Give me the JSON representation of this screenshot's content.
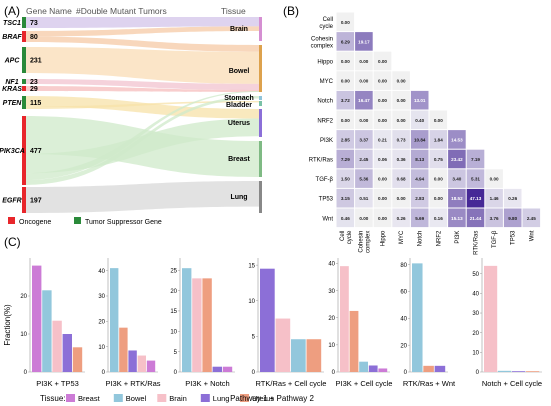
{
  "panelA": {
    "label": "(A)",
    "header_gene": "Gene Name",
    "header_count": "#Double Mutant Tumors",
    "header_tissue": "Tissue",
    "genes": [
      {
        "name": "TSC1",
        "count": "73",
        "type": "suppressor"
      },
      {
        "name": "BRAF",
        "count": "80",
        "type": "oncogene"
      },
      {
        "name": "APC",
        "count": "231",
        "type": "suppressor"
      },
      {
        "name": "NF1",
        "count": "23",
        "type": "suppressor"
      },
      {
        "name": "KRAS",
        "count": "29",
        "type": "oncogene"
      },
      {
        "name": "PTEN",
        "count": "115",
        "type": "suppressor"
      },
      {
        "name": "PIK3CA",
        "count": "477",
        "type": "oncogene"
      },
      {
        "name": "EGFR",
        "count": "197",
        "type": "oncogene"
      }
    ],
    "tissues": [
      "Brain",
      "Bowel",
      "Stomach",
      "Bladder",
      "Uterus",
      "Breast",
      "Lung"
    ],
    "legend": [
      {
        "label": "Oncogene",
        "color": "#e8262b"
      },
      {
        "label": "Tumor Suppressor Gene",
        "color": "#2a8a3a"
      }
    ]
  },
  "panelB": {
    "label": "(B)",
    "chart_data": {
      "type": "heatmap",
      "labels": [
        "Cell cycle",
        "Cohesin complex",
        "Hippo",
        "MYC",
        "Notch",
        "NRF2",
        "PI3K",
        "RTK/Ras",
        "TGF-β",
        "TP53",
        "Wnt"
      ],
      "row_labels": [
        "Cell\ncycle",
        "Cohesin\ncomplex",
        "Hippo",
        "MYC",
        "Notch",
        "NRF2",
        "PI3K",
        "RTK/Ras",
        "TGF-β",
        "TP53",
        "Wnt"
      ],
      "col_labels": [
        "Cell\ncycle",
        "Cohesin\ncomplex",
        "Hippo",
        "MYC",
        "Notch",
        "NRF2",
        "PI3K",
        "RTK/Ras",
        "TGF-β",
        "TP53",
        "Wnt"
      ],
      "values": [
        [
          "0.00"
        ],
        [
          "6.29",
          "19.17"
        ],
        [
          "0.00",
          "0.00",
          "0.00"
        ],
        [
          "0.00",
          "0.00",
          "0.00",
          "0.00"
        ],
        [
          "3.72",
          "16.47",
          "0.00",
          "0.00",
          "13.01"
        ],
        [
          "0.00",
          "0.00",
          "0.00",
          "0.00",
          "0.40",
          "0.00"
        ],
        [
          "2.85",
          "3.37",
          "0.21",
          "0.73",
          "10.84",
          "1.84",
          "14.53"
        ],
        [
          "7.29",
          "2.45",
          "0.06",
          "0.36",
          "8.13",
          "0.75",
          "23.42",
          "7.19"
        ],
        [
          "1.50",
          "5.36",
          "0.00",
          "0.68",
          "4.94",
          "0.00",
          "3.40",
          "5.31",
          "0.00"
        ],
        [
          "3.15",
          "0.51",
          "0.00",
          "0.00",
          "2.83",
          "0.00",
          "18.52",
          "47.13",
          "1.46",
          "0.26"
        ],
        [
          "0.46",
          "0.00",
          "0.00",
          "0.26",
          "5.69",
          "0.16",
          "15.13",
          "21.44",
          "3.76",
          "9.80",
          "2.45"
        ]
      ]
    }
  },
  "panelC": {
    "label": "(C)",
    "ylabel": "Fraction(%)",
    "xlabel": "Pathway 1 + Pathway 2",
    "legend_title": "Tissue:",
    "tissues": [
      {
        "name": "Breast",
        "color": "#cc7bd6"
      },
      {
        "name": "Bowel",
        "color": "#92c7dc"
      },
      {
        "name": "Brain",
        "color": "#f6c0c8"
      },
      {
        "name": "Lung",
        "color": "#8c6fd7"
      },
      {
        "name": "Uterus",
        "color": "#ee9e80"
      }
    ],
    "chart_data": [
      {
        "type": "bar",
        "category": "PI3K + TP53",
        "yticks": [
          "0",
          "10",
          "20"
        ],
        "ylim": [
          0,
          30
        ],
        "values": {
          "Breast": 28,
          "Bowel": 21.5,
          "Brain": 13.5,
          "Lung": 10,
          "Uterus": 6.5
        }
      },
      {
        "type": "bar",
        "category": "PI3K + RTK/Ras",
        "yticks": [
          "0",
          "10",
          "20",
          "30",
          "40"
        ],
        "ylim": [
          0,
          45
        ],
        "values": {
          "Bowel": 41,
          "Uterus": 17.5,
          "Lung": 8.5,
          "Brain": 6.5,
          "Breast": 4.5
        }
      },
      {
        "type": "bar",
        "category": "PI3K + Notch",
        "yticks": [
          "0",
          "5",
          "10",
          "15",
          "20",
          "25"
        ],
        "ylim": [
          0,
          28
        ],
        "values": {
          "Bowel": 25.5,
          "Brain": 23,
          "Uterus": 23,
          "Lung": 1.3,
          "Breast": 1.3
        }
      },
      {
        "type": "bar",
        "category": "RTK/Ras + Cell cycle",
        "yticks": [
          "0",
          "5",
          "10",
          "15"
        ],
        "ylim": [
          0,
          16
        ],
        "values": {
          "Lung": 14.5,
          "Brain": 7.5,
          "Bowel": 4.6,
          "Uterus": 4.6
        }
      },
      {
        "type": "bar",
        "category": "PI3K + Cell cycle",
        "yticks": [
          "0",
          "10",
          "20",
          "30",
          "40"
        ],
        "ylim": [
          0,
          42
        ],
        "values": {
          "Brain": 39,
          "Uterus": 22.5,
          "Bowel": 3.8,
          "Lung": 2.4,
          "Breast": 1.3
        }
      },
      {
        "type": "bar",
        "category": "RTK/Ras + Wnt",
        "yticks": [
          "0",
          "20",
          "40",
          "60",
          "80"
        ],
        "ylim": [
          0,
          85
        ],
        "values": {
          "Bowel": 81,
          "Uterus": 4.6,
          "Lung": 4.6
        }
      },
      {
        "type": "bar",
        "category": "Notch + Cell cycle",
        "yticks": [
          "0",
          "10",
          "20",
          "30",
          "40",
          "50"
        ],
        "ylim": [
          0,
          58
        ],
        "values": {
          "Brain": 54,
          "Bowel": 0.6,
          "Lung": 0.4,
          "Uterus": 0.4
        }
      }
    ]
  }
}
